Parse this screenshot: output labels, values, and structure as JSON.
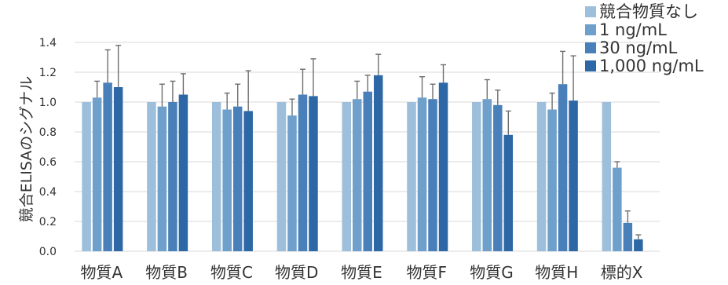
{
  "chart_data": {
    "type": "bar",
    "ylabel": "競合ELISAのシグナル",
    "ylim": [
      0,
      1.4
    ],
    "yticks": [
      "0.0",
      "0.2",
      "0.4",
      "0.6",
      "0.8",
      "1.0",
      "1.2",
      "1.4"
    ],
    "categories": [
      "物質A",
      "物質B",
      "物質C",
      "物質D",
      "物質E",
      "物質F",
      "物質G",
      "物質H",
      "標的X"
    ],
    "grid": true,
    "legend_position": "top-right",
    "series": [
      {
        "name": "競合物質なし",
        "color": "#9dbfdc",
        "values": [
          1.0,
          1.0,
          1.0,
          1.0,
          1.0,
          1.0,
          1.0,
          1.0,
          1.0
        ],
        "errors": [
          null,
          null,
          null,
          null,
          null,
          null,
          null,
          null,
          null
        ]
      },
      {
        "name": "1 ng/mL",
        "color": "#6f9fcb",
        "values": [
          1.03,
          0.97,
          0.95,
          0.91,
          1.02,
          1.03,
          1.02,
          0.95,
          0.56
        ],
        "errors": [
          0.11,
          0.15,
          0.11,
          0.11,
          0.12,
          0.14,
          0.13,
          0.11,
          0.04
        ]
      },
      {
        "name": "30 ng/mL",
        "color": "#4a80ba",
        "values": [
          1.13,
          1.0,
          0.97,
          1.05,
          1.07,
          1.02,
          0.98,
          1.12,
          0.19
        ],
        "errors": [
          0.22,
          0.14,
          0.15,
          0.17,
          0.11,
          0.1,
          0.1,
          0.22,
          0.08
        ]
      },
      {
        "name": "1,000 ng/mL",
        "color": "#2d67a6",
        "values": [
          1.1,
          1.05,
          0.94,
          1.04,
          1.18,
          1.13,
          0.78,
          1.01,
          0.08
        ],
        "errors": [
          0.28,
          0.14,
          0.27,
          0.25,
          0.14,
          0.12,
          0.16,
          0.3,
          0.03
        ]
      }
    ]
  }
}
